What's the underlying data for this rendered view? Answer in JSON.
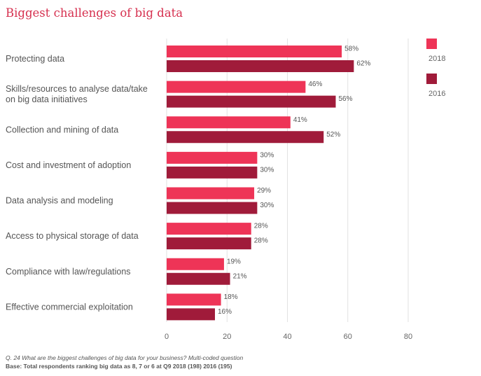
{
  "title": "Biggest challenges of big data",
  "colors": {
    "2018": "#ee3457",
    "2016": "#a01b3a",
    "grid": "#e2e2e2"
  },
  "chart_data": {
    "type": "bar",
    "orientation": "horizontal",
    "title": "Biggest challenges of big data",
    "categories": [
      [
        "Protecting data"
      ],
      [
        "Skills/resources to analyse data/take",
        "on big data initiatives"
      ],
      [
        "Collection and mining of data"
      ],
      [
        "Cost and investment of adoption"
      ],
      [
        "Data analysis and modeling"
      ],
      [
        "Access to physical storage of data"
      ],
      [
        "Compliance with law/regulations"
      ],
      [
        "Effective commercial exploitation"
      ]
    ],
    "series": [
      {
        "name": "2018",
        "values": [
          58,
          46,
          41,
          30,
          29,
          28,
          19,
          18
        ],
        "labels": [
          "58%",
          "46%",
          "41%",
          "30%",
          "29%",
          "28%",
          "19%",
          "18%"
        ]
      },
      {
        "name": "2016",
        "values": [
          62,
          56,
          52,
          30,
          30,
          28,
          21,
          16
        ],
        "labels": [
          "62%",
          "56%",
          "52%",
          "30%",
          "30%",
          "28%",
          "21%",
          "16%"
        ]
      }
    ],
    "xlim": [
      0,
      80
    ],
    "xticks": [
      0,
      20,
      40,
      60,
      80
    ],
    "xtick_labels": [
      "0",
      "20",
      "40",
      "60",
      "80"
    ],
    "grid": true,
    "legend_position": "top-right"
  },
  "footnotes": {
    "question": "Q. 24 What are the biggest challenges of big data for your business? Multi-coded question",
    "base": "Base: Total respondents ranking big data as 8, 7 or 6 at Q9 2018 (198) 2016 (195)"
  }
}
